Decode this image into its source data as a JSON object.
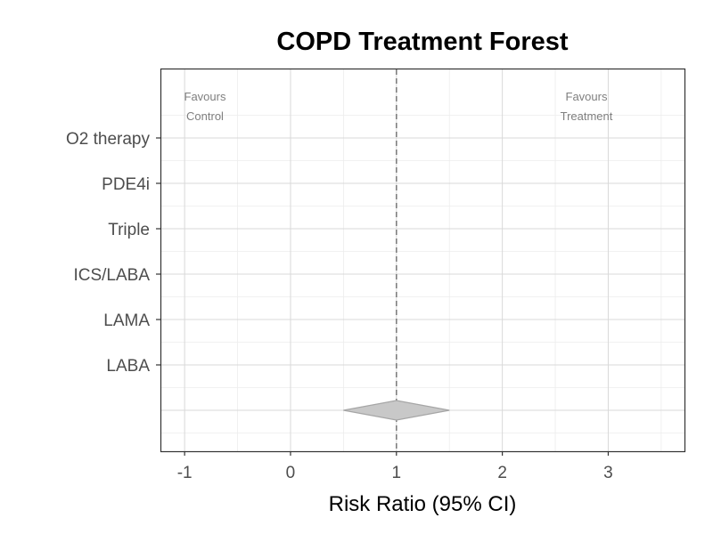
{
  "chart_data": {
    "type": "forest",
    "title": "COPD Treatment Forest",
    "xlabel": "Risk Ratio (95% CI)",
    "ylabel": "",
    "xlim": [
      -1.22,
      3.72
    ],
    "x_ticks": [
      -1,
      0,
      1,
      2,
      3
    ],
    "x_tick_labels": [
      "-1",
      "0",
      "1",
      "2",
      "3"
    ],
    "reference_line": 1,
    "categories": [
      "O2 therapy",
      "PDE4i",
      "Triple",
      "ICS/LABA",
      "LAMA",
      "LABA"
    ],
    "studies": [
      {
        "label": "O2 therapy",
        "estimate": null,
        "lower": null,
        "upper": null
      },
      {
        "label": "PDE4i",
        "estimate": null,
        "lower": null,
        "upper": null
      },
      {
        "label": "Triple",
        "estimate": null,
        "lower": null,
        "upper": null
      },
      {
        "label": "ICS/LABA",
        "estimate": null,
        "lower": null,
        "upper": null
      },
      {
        "label": "LAMA",
        "estimate": null,
        "lower": null,
        "upper": null
      },
      {
        "label": "LABA",
        "estimate": null,
        "lower": null,
        "upper": null
      }
    ],
    "pooled": {
      "estimate": 1.0,
      "lower": 0.5,
      "upper": 1.5
    },
    "annotations": {
      "left": [
        "Favours",
        "Control"
      ],
      "right": [
        "Favours",
        "Treatment"
      ]
    },
    "grid": true,
    "colors": {
      "diamond_fill": "#c8c8c8",
      "diamond_stroke": "#a6a6a6",
      "reference_line": "#7f7f7f",
      "grid": "#d9d9d9",
      "panel_border": "#333333"
    }
  }
}
